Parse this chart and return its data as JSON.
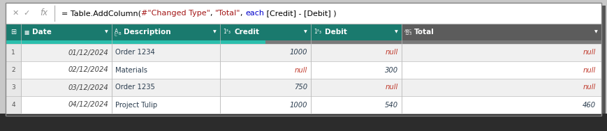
{
  "formula_segments": [
    [
      "= Table.AddColumn(",
      "#000000"
    ],
    [
      "#\"Changed Type\"",
      "#a31515"
    ],
    [
      ", ",
      "#000000"
    ],
    [
      "\"Total\"",
      "#a31515"
    ],
    [
      ", ",
      "#000000"
    ],
    [
      "each",
      "#0000cc"
    ],
    [
      " [Credit] - [Debit] )",
      "#000000"
    ]
  ],
  "columns": [
    "Date",
    "Description",
    "Credit",
    "Debit",
    "Total"
  ],
  "rows": [
    [
      "01/12/2024",
      "Order 1234",
      "1000",
      "null",
      "null"
    ],
    [
      "02/12/2024",
      "Materials",
      "null",
      "300",
      "null"
    ],
    [
      "03/12/2024",
      "Order 1235",
      "750",
      "null",
      "null"
    ],
    [
      "04/12/2024",
      "Project Tulip",
      "1000",
      "540",
      "460"
    ]
  ],
  "header_bg": "#1a7a6e",
  "header_accent_teal": "#2bbfad",
  "header_accent_gray": "#7a7a7a",
  "total_col_bg": "#5c5c5c",
  "row_bg_odd": "#f0f0f0",
  "row_bg_even": "#ffffff",
  "row_num_bg": "#e8e8e8",
  "null_color": "#c0392b",
  "number_color": "#2c3e50",
  "date_color": "#444444",
  "desc_color": "#2c3e50",
  "formula_bar_bg": "#ffffff",
  "outer_bg": "#c8c8c8",
  "dark_bar_bg": "#2c2c2c",
  "border_color": "#bbbbbb",
  "white": "#ffffff",
  "gray_icon": "#999999",
  "formula_font_size": 8.0,
  "table_font_size": 7.2,
  "header_font_size": 7.5
}
